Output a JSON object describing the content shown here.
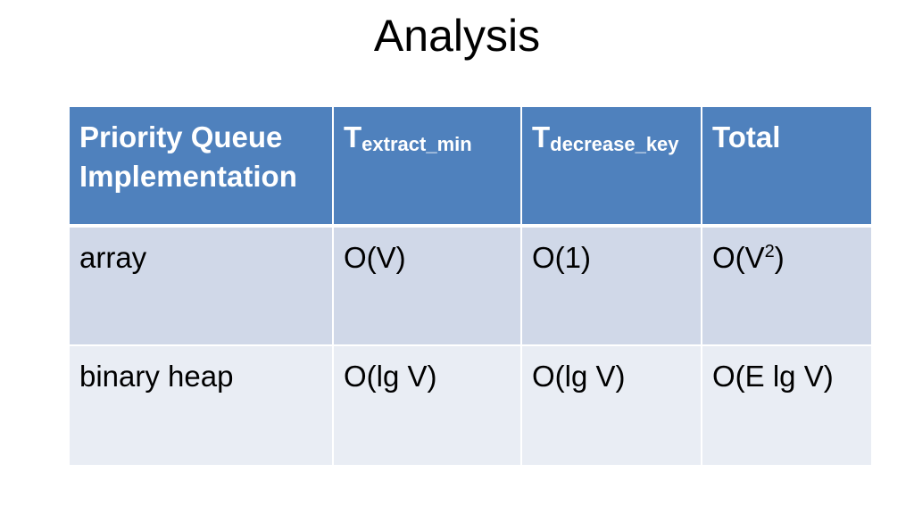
{
  "slide": {
    "title": "Analysis"
  },
  "table": {
    "header": {
      "implementation": "Priority Queue Implementation",
      "extract_min": {
        "base": "T",
        "sub": "extract_min"
      },
      "decrease_key": {
        "base": "T",
        "sub": "decrease_key"
      },
      "total": "Total"
    },
    "rows": [
      {
        "implementation": "array",
        "extract_min": "O(V)",
        "decrease_key": "O(1)",
        "total_base": "O(V",
        "total_sup": "2",
        "total_tail": ")"
      },
      {
        "implementation": "binary heap",
        "extract_min": "O(lg V)",
        "decrease_key": "O(lg V)",
        "total": "O(E lg V)"
      }
    ]
  },
  "colors": {
    "header_bg": "#4f81bd",
    "row_odd_bg": "#d0d8e8",
    "row_even_bg": "#e9edf4"
  }
}
